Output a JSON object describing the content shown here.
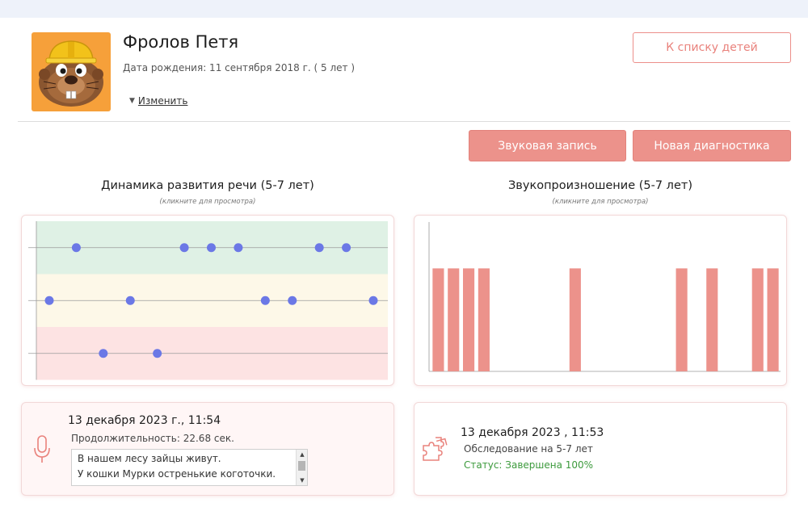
{
  "child": {
    "name": "Фролов Петя",
    "birth": "Дата рождения: 11 сентября 2018 г. ( 5 лет )",
    "edit": "Изменить"
  },
  "actions": {
    "back": "К списку детей",
    "sound_record": "Звуковая запись",
    "new_diagnostics": "Новая диагностика"
  },
  "speech": {
    "title": "Динамика развития речи (5-7 лет)",
    "hint": "(кликните для просмотра)"
  },
  "sound": {
    "title": "Звукопроизношение (5-7 лет)",
    "hint": "(кликните для просмотра)"
  },
  "chart_data": [
    {
      "type": "scatter",
      "levels": [
        "high",
        "medium",
        "low"
      ],
      "band_colors": [
        "#dff1e5",
        "#fdf8e8",
        "#fde3e3"
      ],
      "point_color": "#6b78e6",
      "points": [
        {
          "index": 0,
          "level": 1
        },
        {
          "index": 1,
          "level": 0
        },
        {
          "index": 2,
          "level": 2
        },
        {
          "index": 3,
          "level": 1
        },
        {
          "index": 4,
          "level": 2
        },
        {
          "index": 5,
          "level": 0
        },
        {
          "index": 6,
          "level": 0
        },
        {
          "index": 7,
          "level": 0
        },
        {
          "index": 8,
          "level": 1
        },
        {
          "index": 9,
          "level": 1
        },
        {
          "index": 10,
          "level": 0
        },
        {
          "index": 11,
          "level": 0
        },
        {
          "index": 12,
          "level": 1
        }
      ],
      "x_count": 13
    },
    {
      "type": "bar",
      "color": "#ec928b",
      "categories_count": 23,
      "values": [
        1,
        1,
        1,
        1,
        0,
        0,
        0,
        0,
        0,
        1,
        0,
        0,
        0,
        0,
        0,
        0,
        1,
        0,
        1,
        0,
        0,
        1,
        1
      ],
      "ylim": [
        0,
        1.45
      ]
    }
  ],
  "recording": {
    "date": "13 декабря 2023 г., 11:54",
    "duration": "Продолжительность: 22.68 сек.",
    "line1": "В нашем лесу зайцы живут.",
    "line2": "У кошки Мурки остренькие коготочки."
  },
  "diagnostics": {
    "date": "13 декабря 2023 , 11:53",
    "type": "Обследование на 5-7 лет",
    "status": "Статус: Завершена 100%"
  }
}
